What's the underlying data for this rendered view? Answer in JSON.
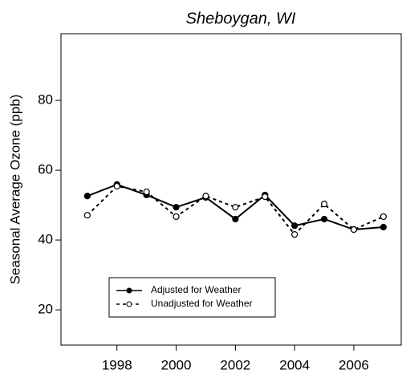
{
  "chart_data": {
    "type": "line",
    "title": "Sheboygan, WI",
    "y_label": "Seasonal Average Ozone (ppb)",
    "x": [
      1997,
      1998,
      1999,
      2000,
      2001,
      2002,
      2003,
      2004,
      2005,
      2006,
      2007
    ],
    "series": [
      {
        "name": "Adjusted for Weather",
        "color": "#000000",
        "values": [
          52.6,
          55.9,
          52.9,
          49.4,
          52.2,
          46.0,
          52.9,
          44.1,
          46.0,
          43.0,
          43.7
        ]
      },
      {
        "name": "Unadjusted for Weather",
        "color": "#000000",
        "values": [
          47.1,
          55.4,
          53.8,
          46.7,
          52.6,
          49.4,
          52.4,
          41.6,
          50.3,
          43.0,
          46.7
        ]
      }
    ],
    "xlim": [
      1996.11,
      2007.6
    ],
    "xticks": [
      1998,
      2000,
      2002,
      2004,
      2006
    ],
    "ylim": [
      9.9,
      99.1
    ],
    "yticks": [
      20,
      40,
      60,
      80
    ],
    "legend": "lower left"
  }
}
